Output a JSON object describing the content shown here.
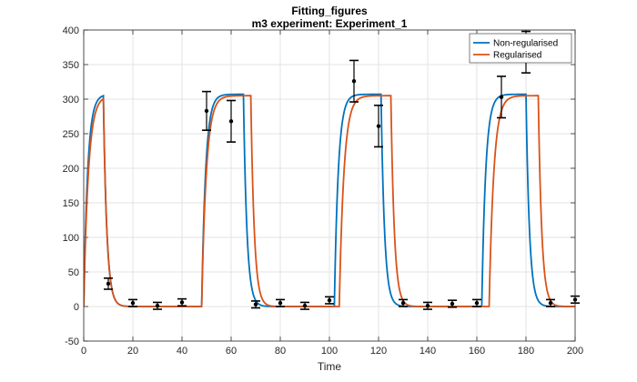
{
  "figure": {
    "title": "Fitting_figures",
    "subtitle": "m3 experiment: Experiment_1"
  },
  "chart_data": {
    "type": "line",
    "title": "Fitting_figures",
    "subtitle": "m3 experiment: Experiment_1",
    "xlabel": "Time",
    "ylabel": "",
    "xlim": [
      0,
      200
    ],
    "ylim": [
      -50,
      400
    ],
    "xticks": [
      0,
      20,
      40,
      60,
      80,
      100,
      120,
      140,
      160,
      180,
      200
    ],
    "yticks": [
      -50,
      0,
      50,
      100,
      150,
      200,
      250,
      300,
      350,
      400
    ],
    "grid": true,
    "legend_position": "top-right",
    "series": [
      {
        "name": "Non-regularised",
        "color": "#0072BD",
        "pulses": [
          {
            "on": 0,
            "off": 8
          },
          {
            "on": 48,
            "off": 65
          },
          {
            "on": 102,
            "off": 121
          },
          {
            "on": 162,
            "off": 180
          }
        ],
        "high": 307,
        "low": 0,
        "rise_tau": 1.6,
        "fall_tau": 1.4
      },
      {
        "name": "Regularised",
        "color": "#D95319",
        "pulses": [
          {
            "on": 0,
            "off": 8
          },
          {
            "on": 48,
            "off": 68
          },
          {
            "on": 104,
            "off": 125
          },
          {
            "on": 165,
            "off": 185
          }
        ],
        "high": 305,
        "low": 0,
        "rise_tau": 1.9,
        "fall_tau": 1.4
      }
    ],
    "measurements": [
      {
        "x": 10,
        "y": 33,
        "err": 8
      },
      {
        "x": 20,
        "y": 5,
        "err": 5
      },
      {
        "x": 30,
        "y": 1,
        "err": 5
      },
      {
        "x": 40,
        "y": 6,
        "err": 5
      },
      {
        "x": 50,
        "y": 283,
        "err": 28
      },
      {
        "x": 60,
        "y": 268,
        "err": 30
      },
      {
        "x": 70,
        "y": 3,
        "err": 5
      },
      {
        "x": 80,
        "y": 5,
        "err": 5
      },
      {
        "x": 90,
        "y": 1,
        "err": 5
      },
      {
        "x": 100,
        "y": 9,
        "err": 5
      },
      {
        "x": 110,
        "y": 326,
        "err": 30
      },
      {
        "x": 120,
        "y": 261,
        "err": 30
      },
      {
        "x": 130,
        "y": 5,
        "err": 5
      },
      {
        "x": 140,
        "y": 1,
        "err": 5
      },
      {
        "x": 150,
        "y": 4,
        "err": 5
      },
      {
        "x": 160,
        "y": 5,
        "err": 5
      },
      {
        "x": 170,
        "y": 303,
        "err": 30
      },
      {
        "x": 180,
        "y": 368,
        "err": 30
      },
      {
        "x": 190,
        "y": 5,
        "err": 5
      },
      {
        "x": 200,
        "y": 10,
        "err": 5
      }
    ]
  }
}
